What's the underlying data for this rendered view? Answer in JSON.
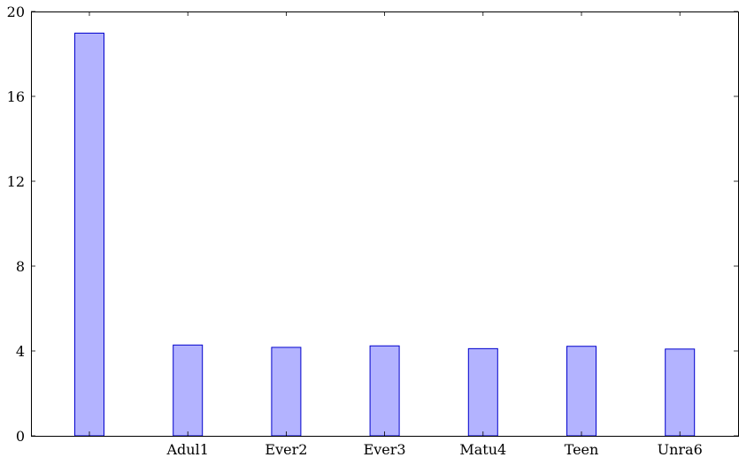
{
  "chart_data": {
    "type": "bar",
    "title": "",
    "xlabel": "",
    "ylabel": "",
    "categories": [
      "",
      "Adul1",
      "Ever2",
      "Ever3",
      "Matu4",
      "Teen",
      "Unra6"
    ],
    "values": [
      18.98,
      4.28,
      4.17,
      4.24,
      4.11,
      4.22,
      4.09
    ],
    "ylim": [
      0,
      20
    ],
    "yticks": [
      0,
      4,
      8,
      12,
      16,
      20
    ],
    "ytick_labels": [
      "0",
      "4",
      "8",
      "12",
      "16",
      "20"
    ],
    "grid": false,
    "legend": "none",
    "colors": {
      "bar_fill": "#b3b3ff",
      "bar_stroke": "#0000cc",
      "axis": "#000000"
    }
  }
}
